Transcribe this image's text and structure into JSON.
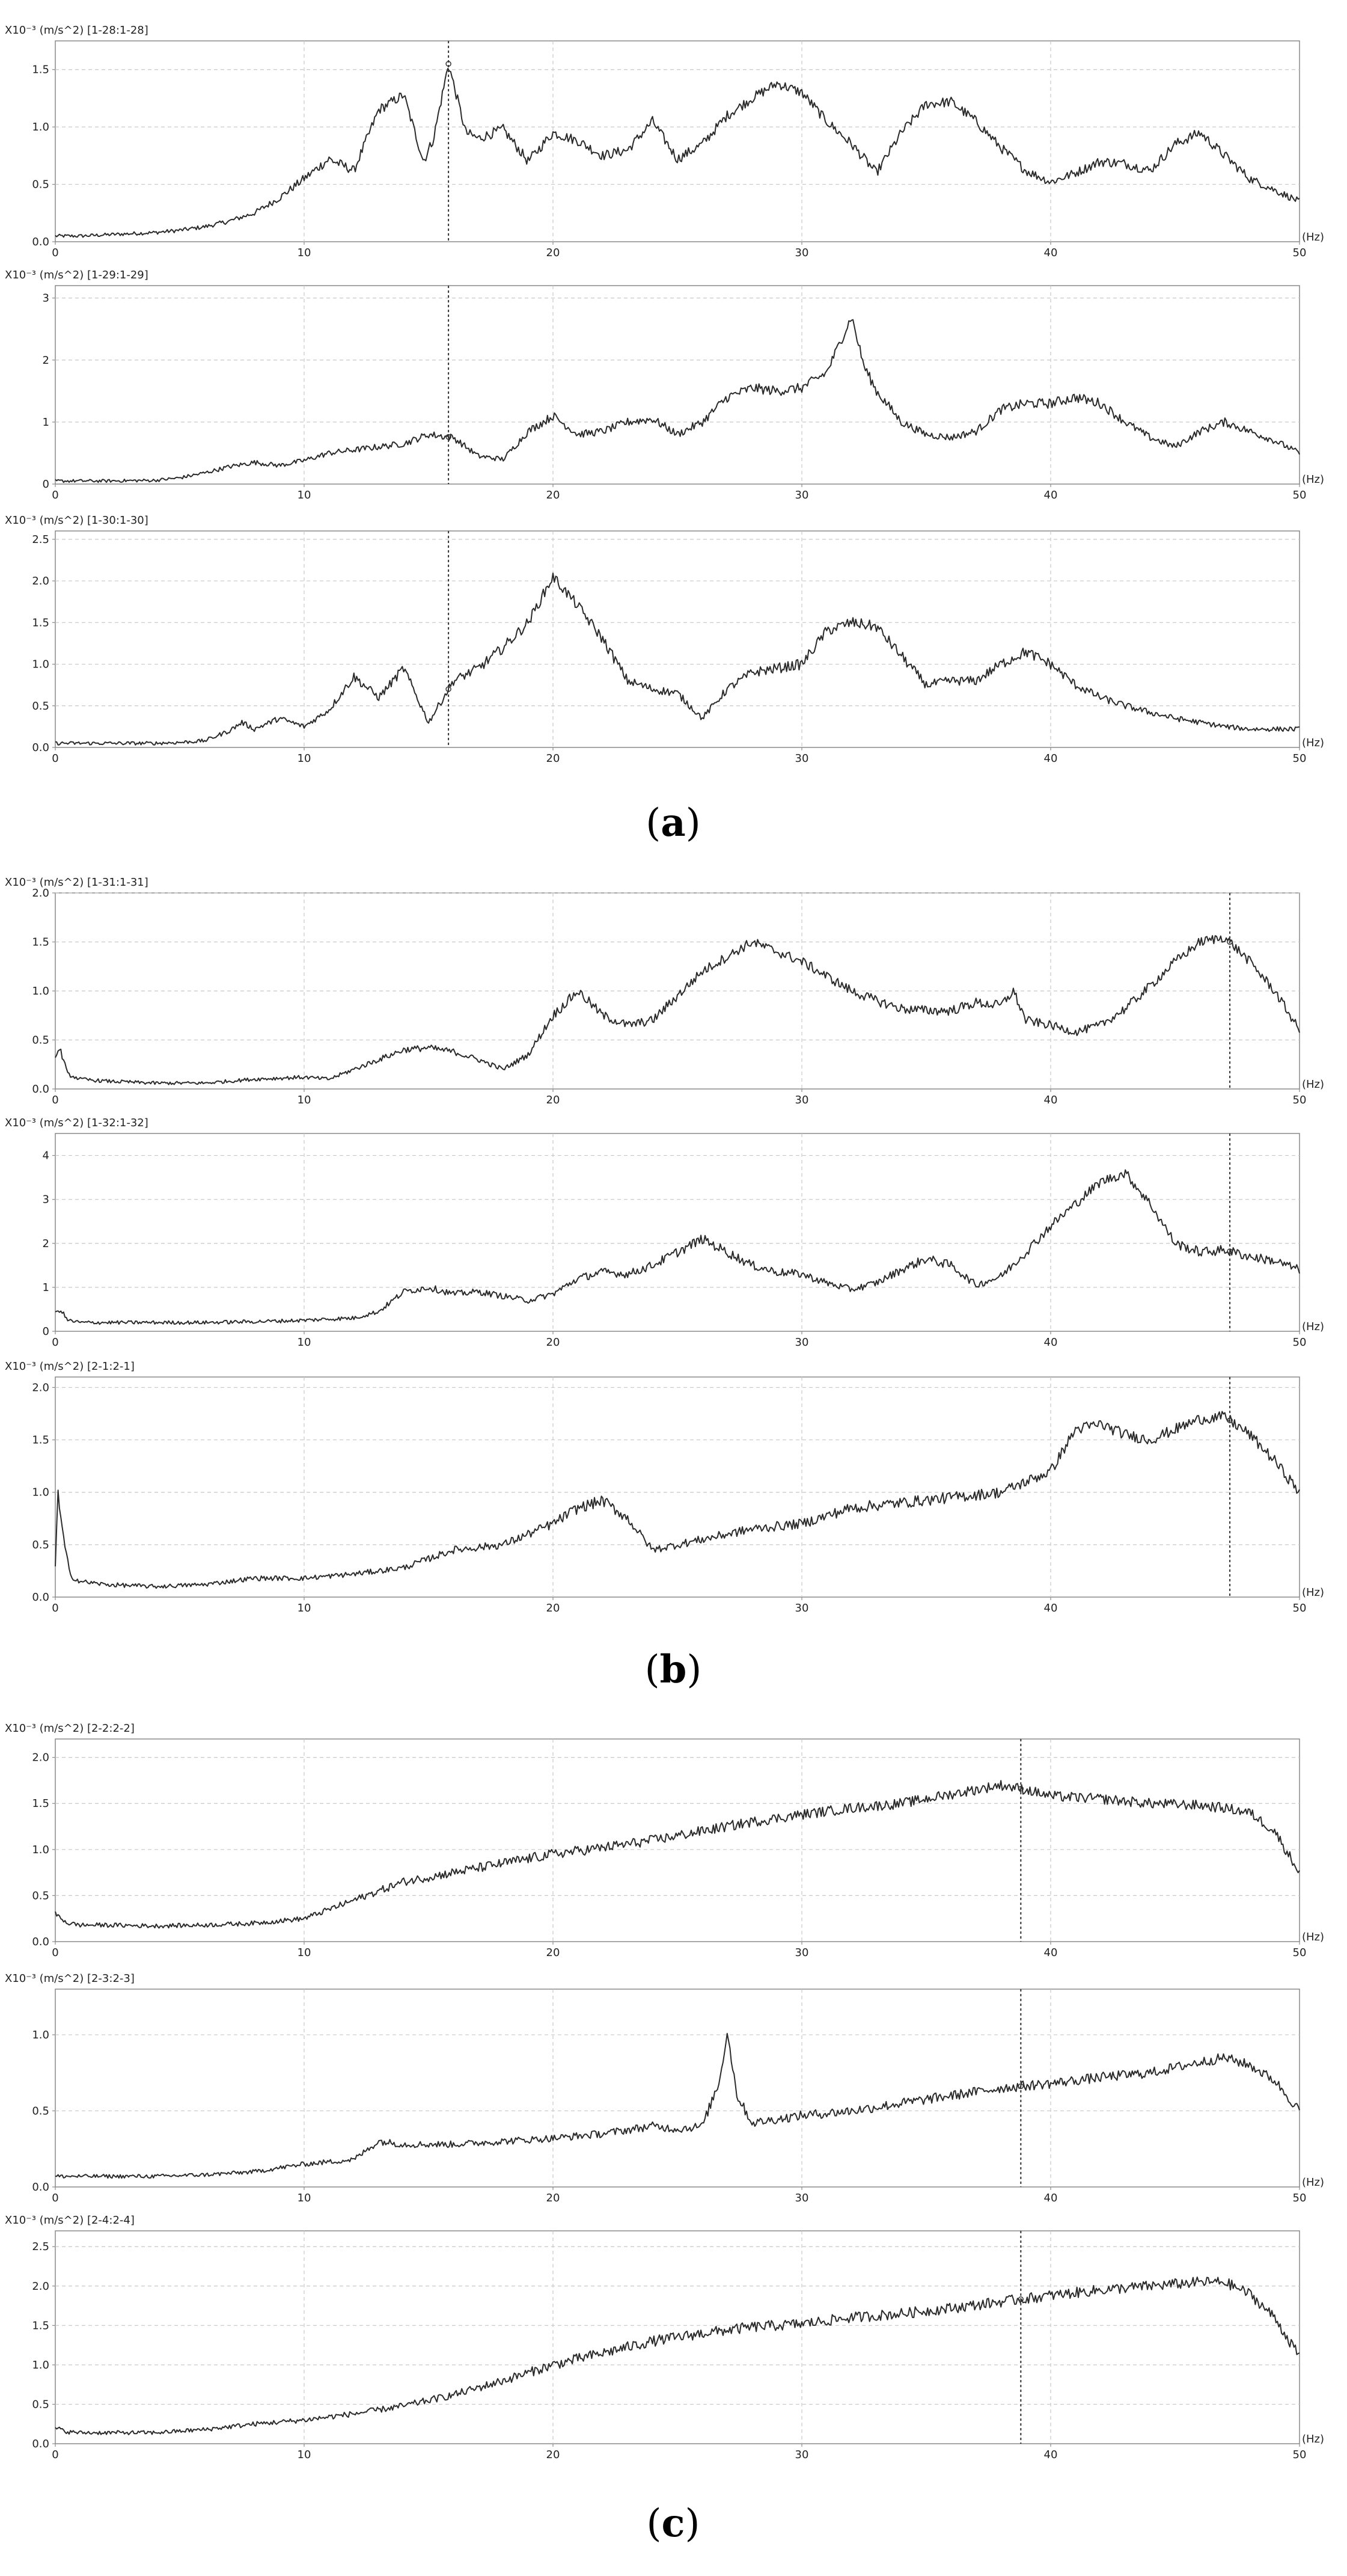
{
  "figure": {
    "captions": [
      "(a)",
      "(b)",
      "(c)"
    ],
    "caption_letters": [
      "a",
      "b",
      "c"
    ]
  },
  "chart_data": [
    {
      "type": "line",
      "group": "a",
      "title": "X10⁻³ (m/s^2)  [1-28:1-28]",
      "xlabel": "(Hz)",
      "ylabel": "X10⁻³ (m/s^2)",
      "xlim": [
        0,
        50
      ],
      "ylim": [
        0,
        1.75
      ],
      "xticks": [
        0,
        10,
        20,
        30,
        40,
        50
      ],
      "yticks": [
        0.0,
        0.5,
        1.0,
        1.5
      ],
      "ytick_labels": [
        "0.0",
        "0.5",
        "1.0",
        "1.5"
      ],
      "marker_x": 15.8,
      "grid": true,
      "x": [
        0,
        1,
        2,
        3,
        4,
        5,
        6,
        7,
        8,
        9,
        10,
        11,
        12,
        13,
        14,
        14.8,
        15.2,
        15.8,
        16.5,
        17,
        18,
        19,
        20,
        21,
        22,
        23,
        24,
        25,
        26,
        27,
        28,
        29,
        30,
        31,
        32,
        33,
        34,
        35,
        36,
        37,
        38,
        39,
        40,
        41,
        42,
        43,
        44,
        45,
        46,
        47,
        48,
        49,
        50
      ],
      "y": [
        0.05,
        0.05,
        0.06,
        0.07,
        0.08,
        0.1,
        0.13,
        0.18,
        0.25,
        0.38,
        0.55,
        0.72,
        0.62,
        1.15,
        1.28,
        0.7,
        0.9,
        1.55,
        0.95,
        0.9,
        0.98,
        0.7,
        0.95,
        0.88,
        0.75,
        0.8,
        1.05,
        0.72,
        0.85,
        1.1,
        1.25,
        1.38,
        1.3,
        1.05,
        0.85,
        0.6,
        0.95,
        1.2,
        1.22,
        1.05,
        0.82,
        0.62,
        0.52,
        0.6,
        0.7,
        0.68,
        0.62,
        0.85,
        0.95,
        0.75,
        0.55,
        0.45,
        0.35
      ]
    },
    {
      "type": "line",
      "group": "a",
      "title": "X10⁻³ (m/s^2)  [1-29:1-29]",
      "xlabel": "(Hz)",
      "ylabel": "X10⁻³ (m/s^2)",
      "xlim": [
        0,
        50
      ],
      "ylim": [
        0,
        3.2
      ],
      "xticks": [
        0,
        10,
        20,
        30,
        40,
        50
      ],
      "yticks": [
        0,
        1,
        2,
        3
      ],
      "ytick_labels": [
        "0",
        "1",
        "2",
        "3"
      ],
      "marker_x": 15.8,
      "grid": true,
      "x": [
        0,
        2,
        4,
        5,
        6,
        7,
        8,
        9,
        10,
        11,
        12,
        13,
        14,
        15,
        16,
        17,
        18,
        19,
        20,
        21,
        22,
        23,
        24,
        25,
        26,
        27,
        28,
        29,
        30,
        31,
        32,
        32.5,
        33,
        34,
        35,
        36,
        37,
        38,
        39,
        40,
        41,
        42,
        43,
        44,
        45,
        46,
        47,
        48,
        49,
        50
      ],
      "y": [
        0.05,
        0.05,
        0.06,
        0.1,
        0.18,
        0.28,
        0.35,
        0.3,
        0.38,
        0.5,
        0.55,
        0.6,
        0.65,
        0.8,
        0.75,
        0.45,
        0.4,
        0.85,
        1.1,
        0.8,
        0.85,
        1.0,
        1.05,
        0.8,
        1.0,
        1.4,
        1.55,
        1.5,
        1.55,
        1.8,
        2.7,
        1.9,
        1.5,
        1.0,
        0.8,
        0.75,
        0.85,
        1.2,
        1.3,
        1.3,
        1.4,
        1.3,
        1.0,
        0.75,
        0.6,
        0.85,
        1.0,
        0.85,
        0.7,
        0.5
      ]
    },
    {
      "type": "line",
      "group": "a",
      "title": "X10⁻³ (m/s^2)  [1-30:1-30]",
      "xlabel": "(Hz)",
      "ylabel": "X10⁻³ (m/s^2)",
      "xlim": [
        0,
        50
      ],
      "ylim": [
        0,
        2.6
      ],
      "xticks": [
        0,
        10,
        20,
        30,
        40,
        50
      ],
      "yticks": [
        0.0,
        0.5,
        1.0,
        1.5,
        2.0,
        2.5
      ],
      "ytick_labels": [
        "0.0",
        "0.5",
        "1.0",
        "1.5",
        "2.0",
        "2.5"
      ],
      "marker_x": 15.8,
      "grid": true,
      "x": [
        0,
        2,
        4,
        5,
        6,
        7,
        7.5,
        8,
        9,
        10,
        11,
        12,
        13,
        14,
        15,
        16,
        17,
        18,
        19,
        20,
        21,
        22,
        23,
        24,
        25,
        26,
        27,
        28,
        29,
        30,
        31,
        32,
        33,
        34,
        35,
        36,
        37,
        38,
        39,
        40,
        41,
        42,
        43,
        44,
        45,
        46,
        47,
        48,
        49,
        50
      ],
      "y": [
        0.05,
        0.05,
        0.05,
        0.06,
        0.08,
        0.2,
        0.3,
        0.22,
        0.35,
        0.25,
        0.45,
        0.85,
        0.6,
        0.95,
        0.3,
        0.8,
        0.95,
        1.2,
        1.5,
        2.05,
        1.7,
        1.3,
        0.8,
        0.7,
        0.65,
        0.35,
        0.7,
        0.9,
        0.95,
        1.0,
        1.4,
        1.5,
        1.45,
        1.1,
        0.75,
        0.8,
        0.8,
        1.0,
        1.15,
        1.0,
        0.75,
        0.6,
        0.5,
        0.42,
        0.35,
        0.3,
        0.25,
        0.22,
        0.22,
        0.22
      ]
    },
    {
      "type": "line",
      "group": "b",
      "title": "X10⁻³ (m/s^2)  [1-31:1-31]",
      "xlabel": "(Hz)",
      "ylabel": "X10⁻³ (m/s^2)",
      "xlim": [
        0,
        50
      ],
      "ylim": [
        0,
        2.0
      ],
      "xticks": [
        0,
        10,
        20,
        30,
        40,
        50
      ],
      "yticks": [
        0.0,
        0.5,
        1.0,
        1.5,
        2.0
      ],
      "ytick_labels": [
        "0.0",
        "0.5",
        "1.0",
        "1.5",
        "2.0"
      ],
      "marker_x": 47.2,
      "grid": true,
      "x": [
        0,
        0.2,
        0.5,
        1,
        2,
        4,
        6,
        8,
        10,
        11,
        12,
        13,
        14,
        15,
        16,
        17,
        18,
        19,
        20,
        21,
        22,
        23,
        24,
        25,
        26,
        27,
        28,
        29,
        30,
        31,
        32,
        33,
        34,
        35,
        36,
        37,
        38,
        38.5,
        39,
        40,
        41,
        42,
        43,
        44,
        45,
        46,
        47,
        48,
        49,
        50
      ],
      "y": [
        0.35,
        0.4,
        0.15,
        0.1,
        0.08,
        0.06,
        0.06,
        0.1,
        0.12,
        0.1,
        0.2,
        0.3,
        0.4,
        0.42,
        0.38,
        0.3,
        0.2,
        0.35,
        0.75,
        1.0,
        0.75,
        0.65,
        0.7,
        0.95,
        1.2,
        1.35,
        1.5,
        1.4,
        1.3,
        1.15,
        1.0,
        0.9,
        0.82,
        0.8,
        0.8,
        0.88,
        0.85,
        1.0,
        0.7,
        0.65,
        0.58,
        0.65,
        0.82,
        1.05,
        1.3,
        1.5,
        1.55,
        1.3,
        1.0,
        0.6
      ]
    },
    {
      "type": "line",
      "group": "b",
      "title": "X10⁻³ (m/s^2)  [1-32:1-32]",
      "xlabel": "(Hz)",
      "ylabel": "X10⁻³ (m/s^2)",
      "xlim": [
        0,
        50
      ],
      "ylim": [
        0,
        4.5
      ],
      "xticks": [
        0,
        10,
        20,
        30,
        40,
        50
      ],
      "yticks": [
        0,
        1,
        2,
        3,
        4
      ],
      "ytick_labels": [
        "0",
        "1",
        "2",
        "3",
        "4"
      ],
      "marker_x": 47.2,
      "grid": true,
      "x": [
        0,
        0.2,
        0.5,
        1,
        2,
        4,
        6,
        8,
        10,
        11,
        12,
        13,
        14,
        15,
        16,
        17,
        18,
        19,
        20,
        21,
        22,
        23,
        24,
        25,
        26,
        27,
        28,
        29,
        30,
        31,
        32,
        33,
        34,
        35,
        36,
        37,
        38,
        39,
        40,
        41,
        42,
        43,
        44,
        45,
        46,
        47,
        48,
        49,
        50
      ],
      "y": [
        0.4,
        0.5,
        0.25,
        0.2,
        0.2,
        0.2,
        0.2,
        0.22,
        0.25,
        0.28,
        0.3,
        0.45,
        0.9,
        1.0,
        0.85,
        0.9,
        0.8,
        0.7,
        0.85,
        1.2,
        1.35,
        1.3,
        1.5,
        1.8,
        2.1,
        1.8,
        1.5,
        1.35,
        1.3,
        1.1,
        0.95,
        1.1,
        1.4,
        1.65,
        1.5,
        1.05,
        1.25,
        1.8,
        2.4,
        2.9,
        3.4,
        3.6,
        2.9,
        2.0,
        1.8,
        1.85,
        1.7,
        1.6,
        1.4
      ]
    },
    {
      "type": "line",
      "group": "b",
      "title": "X10⁻³ (m/s^2)  [2-1:2-1]",
      "xlabel": "(Hz)",
      "ylabel": "X10⁻³ (m/s^2)",
      "xlim": [
        0,
        50
      ],
      "ylim": [
        0,
        2.1
      ],
      "xticks": [
        0,
        10,
        20,
        30,
        40,
        50
      ],
      "yticks": [
        0.0,
        0.5,
        1.0,
        1.5,
        2.0
      ],
      "ytick_labels": [
        "0.0",
        "0.5",
        "1.0",
        "1.5",
        "2.0"
      ],
      "marker_x": 47.2,
      "grid": true,
      "x": [
        0,
        0.1,
        0.3,
        0.6,
        1,
        2,
        4,
        6,
        8,
        10,
        12,
        14,
        16,
        18,
        20,
        21,
        22,
        23,
        24,
        25,
        26,
        27,
        28,
        30,
        32,
        34,
        36,
        38,
        39,
        40,
        41,
        42,
        43,
        44,
        45,
        46,
        47,
        48,
        49,
        50
      ],
      "y": [
        0.3,
        1.0,
        0.6,
        0.2,
        0.15,
        0.12,
        0.1,
        0.12,
        0.18,
        0.18,
        0.22,
        0.28,
        0.45,
        0.5,
        0.7,
        0.85,
        0.92,
        0.75,
        0.45,
        0.5,
        0.55,
        0.6,
        0.65,
        0.7,
        0.85,
        0.9,
        0.95,
        1.0,
        1.1,
        1.2,
        1.6,
        1.65,
        1.55,
        1.5,
        1.6,
        1.7,
        1.72,
        1.55,
        1.3,
        1.0
      ]
    },
    {
      "type": "line",
      "group": "c",
      "title": "X10⁻³ (m/s^2)  [2-2:2-2]",
      "xlabel": "(Hz)",
      "ylabel": "X10⁻³ (m/s^2)",
      "xlim": [
        0,
        50
      ],
      "ylim": [
        0,
        2.2
      ],
      "xticks": [
        0,
        10,
        20,
        30,
        40,
        50
      ],
      "yticks": [
        0.0,
        0.5,
        1.0,
        1.5,
        2.0
      ],
      "ytick_labels": [
        "0.0",
        "0.5",
        "1.0",
        "1.5",
        "2.0"
      ],
      "marker_x": 38.8,
      "grid": true,
      "x": [
        0,
        0.5,
        1,
        2,
        4,
        6,
        8,
        10,
        12,
        14,
        16,
        18,
        20,
        22,
        24,
        26,
        28,
        30,
        32,
        34,
        36,
        38,
        39,
        40,
        42,
        44,
        46,
        47,
        48,
        49,
        50
      ],
      "y": [
        0.3,
        0.2,
        0.18,
        0.18,
        0.17,
        0.18,
        0.2,
        0.25,
        0.45,
        0.65,
        0.75,
        0.85,
        0.95,
        1.02,
        1.1,
        1.2,
        1.3,
        1.38,
        1.45,
        1.5,
        1.6,
        1.7,
        1.65,
        1.58,
        1.55,
        1.5,
        1.48,
        1.45,
        1.4,
        1.2,
        0.75
      ]
    },
    {
      "type": "line",
      "group": "c",
      "title": "X10⁻³ (m/s^2)  [2-3:2-3]",
      "xlabel": "(Hz)",
      "ylabel": "X10⁻³ (m/s^2)",
      "xlim": [
        0,
        50
      ],
      "ylim": [
        0,
        1.3
      ],
      "xticks": [
        0,
        10,
        20,
        30,
        40,
        50
      ],
      "yticks": [
        0.0,
        0.5,
        1.0
      ],
      "ytick_labels": [
        "0.0",
        "0.5",
        "1.0"
      ],
      "marker_x": 38.8,
      "grid": true,
      "x": [
        0,
        2,
        4,
        6,
        8,
        10,
        12,
        13,
        14,
        16,
        18,
        20,
        22,
        24,
        25,
        26,
        26.7,
        27,
        27.4,
        28,
        30,
        32,
        34,
        36,
        38,
        40,
        42,
        44,
        46,
        47,
        48,
        49,
        50
      ],
      "y": [
        0.07,
        0.07,
        0.07,
        0.08,
        0.1,
        0.15,
        0.18,
        0.3,
        0.28,
        0.28,
        0.3,
        0.32,
        0.35,
        0.4,
        0.38,
        0.4,
        0.7,
        1.02,
        0.6,
        0.42,
        0.47,
        0.5,
        0.55,
        0.6,
        0.65,
        0.68,
        0.72,
        0.75,
        0.82,
        0.85,
        0.8,
        0.7,
        0.5
      ]
    },
    {
      "type": "line",
      "group": "c",
      "title": "X10⁻³ (m/s^2)  [2-4:2-4]",
      "xlabel": "(Hz)",
      "ylabel": "X10⁻³ (m/s^2)",
      "xlim": [
        0,
        50
      ],
      "ylim": [
        0,
        2.7
      ],
      "xticks": [
        0,
        10,
        20,
        30,
        40,
        50
      ],
      "yticks": [
        0.0,
        0.5,
        1.0,
        1.5,
        2.0,
        2.5
      ],
      "ytick_labels": [
        "0.0",
        "0.5",
        "1.0",
        "1.5",
        "2.0",
        "2.5"
      ],
      "marker_x": 38.8,
      "grid": true,
      "x": [
        0,
        0.5,
        1,
        2,
        4,
        6,
        8,
        10,
        12,
        14,
        16,
        18,
        20,
        22,
        24,
        26,
        28,
        30,
        32,
        34,
        36,
        38,
        40,
        42,
        44,
        46,
        47,
        48,
        49,
        50
      ],
      "y": [
        0.2,
        0.15,
        0.14,
        0.14,
        0.14,
        0.18,
        0.25,
        0.3,
        0.38,
        0.48,
        0.62,
        0.8,
        1.0,
        1.15,
        1.3,
        1.4,
        1.48,
        1.52,
        1.6,
        1.65,
        1.72,
        1.8,
        1.88,
        1.95,
        2.0,
        2.05,
        2.05,
        1.9,
        1.6,
        1.1
      ]
    }
  ]
}
